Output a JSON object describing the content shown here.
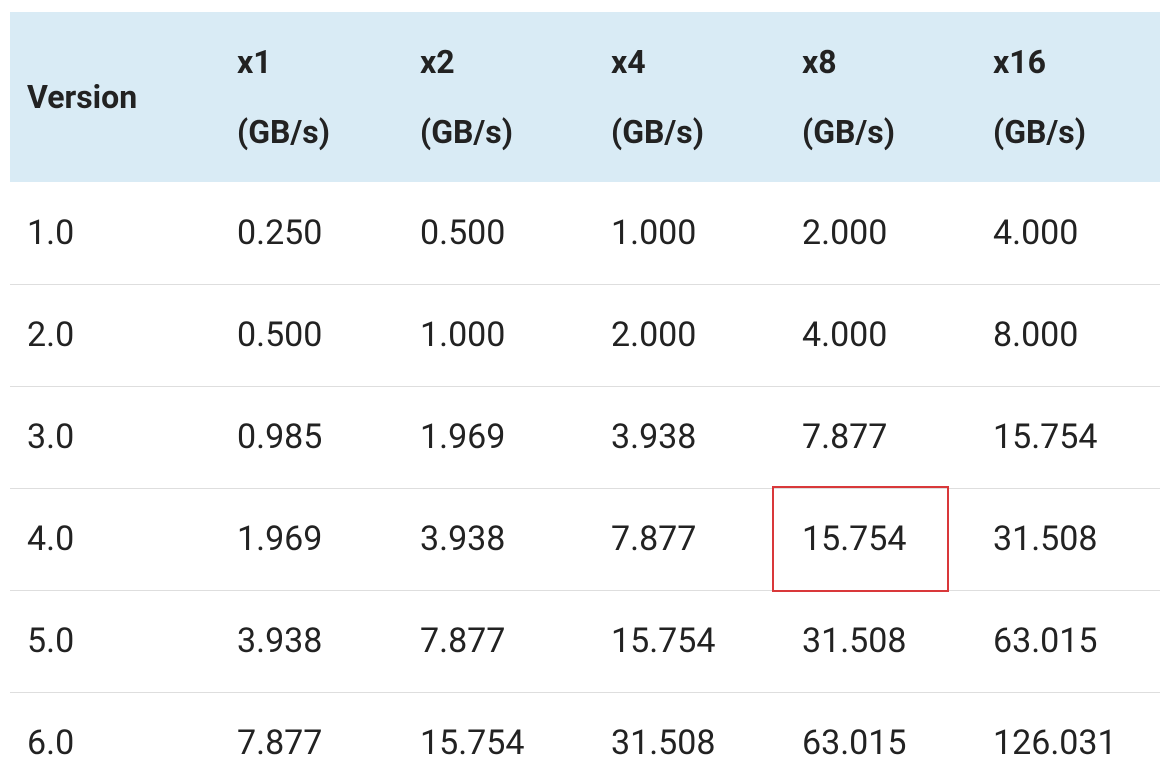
{
  "table": {
    "header": [
      "Version",
      "x1\n(GB/s)",
      "x2\n(GB/s)",
      "x4\n(GB/s)",
      "x8\n(GB/s)",
      "x16\n(GB/s)"
    ],
    "rows": [
      [
        "1.0",
        "0.250",
        "0.500",
        "1.000",
        "2.000",
        "4.000"
      ],
      [
        "2.0",
        "0.500",
        "1.000",
        "2.000",
        "4.000",
        "8.000"
      ],
      [
        "3.0",
        "0.985",
        "1.969",
        "3.938",
        "7.877",
        "15.754"
      ],
      [
        "4.0",
        "1.969",
        "3.938",
        "7.877",
        "15.754",
        "31.508"
      ],
      [
        "5.0",
        "3.938",
        "7.877",
        "15.754",
        "31.508",
        "63.015"
      ],
      [
        "6.0",
        "7.877",
        "15.754",
        "31.508",
        "63.015",
        "126.031"
      ]
    ]
  }
}
